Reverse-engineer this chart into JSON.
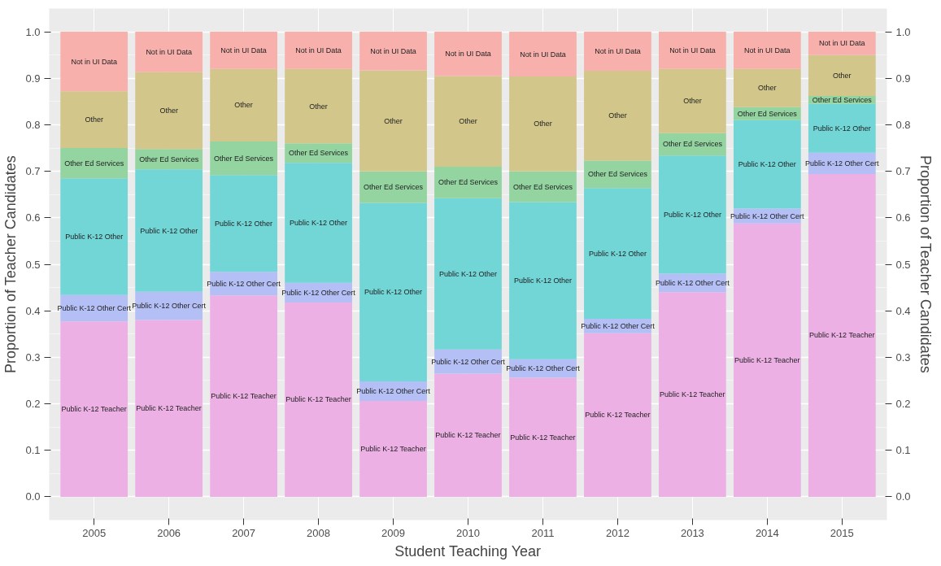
{
  "chart_data": {
    "type": "bar",
    "stacked": true,
    "xlabel": "Student Teaching Year",
    "ylabel": "Proportion of Teacher Candidates",
    "y2label": "Proportion of Teacher Candidates",
    "categories": [
      "2005",
      "2006",
      "2007",
      "2008",
      "2009",
      "2010",
      "2011",
      "2012",
      "2013",
      "2014",
      "2015"
    ],
    "series": [
      {
        "name": "Public K-12 Teacher",
        "color": "#edb0e4",
        "values": [
          0.377,
          0.38,
          0.433,
          0.418,
          0.206,
          0.265,
          0.256,
          0.352,
          0.44,
          0.588,
          0.694
        ]
      },
      {
        "name": "Public K-12 Other Cert",
        "color": "#b3bff5",
        "values": [
          0.057,
          0.061,
          0.051,
          0.042,
          0.042,
          0.052,
          0.04,
          0.031,
          0.04,
          0.032,
          0.046
        ]
      },
      {
        "name": "Public K-12 Other",
        "color": "#72d5d6",
        "values": [
          0.251,
          0.263,
          0.208,
          0.258,
          0.384,
          0.325,
          0.338,
          0.281,
          0.254,
          0.19,
          0.105
        ]
      },
      {
        "name": "Other Ed Services",
        "color": "#93d4a0",
        "values": [
          0.065,
          0.044,
          0.072,
          0.042,
          0.068,
          0.068,
          0.066,
          0.059,
          0.048,
          0.028,
          0.017
        ]
      },
      {
        "name": "Other",
        "color": "#d2c68a",
        "values": [
          0.122,
          0.165,
          0.156,
          0.16,
          0.217,
          0.195,
          0.204,
          0.193,
          0.138,
          0.082,
          0.088
        ]
      },
      {
        "name": "Not in UI Data",
        "color": "#f7b0ac",
        "values": [
          0.128,
          0.087,
          0.08,
          0.08,
          0.083,
          0.095,
          0.096,
          0.084,
          0.08,
          0.08,
          0.05
        ]
      }
    ],
    "ylim": [
      -0.05,
      1.05
    ],
    "yticks": [
      {
        "value": 0,
        "label": "0.0"
      },
      0.1,
      0.2,
      0.3,
      0.4,
      0.5,
      0.6,
      0.7,
      0.8,
      0.9,
      {
        "value": 1,
        "label": "1.0"
      }
    ],
    "y2lim": [
      -0.05,
      1.05
    ],
    "y2ticks": [
      {
        "value": 0,
        "label": "0.0"
      },
      0.1,
      0.2,
      0.3,
      0.4,
      0.5,
      0.6,
      0.7,
      0.8,
      0.9,
      {
        "value": 1,
        "label": "1.0"
      }
    ],
    "grid": true
  }
}
